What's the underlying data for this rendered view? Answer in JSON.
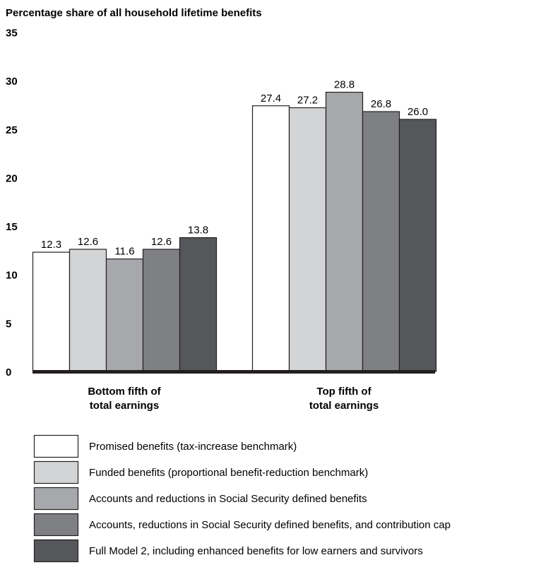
{
  "chart_data": {
    "type": "bar",
    "title": "Percentage share of all household lifetime benefits",
    "xlabel": "",
    "ylabel": "",
    "ylim": [
      0,
      35
    ],
    "yticks": [
      0,
      5,
      10,
      15,
      20,
      25,
      30,
      35
    ],
    "categories": [
      [
        "Bottom fifth of",
        "total earnings"
      ],
      [
        "Top fifth of",
        "total earnings"
      ]
    ],
    "series": [
      {
        "name": "Promised benefits (tax-increase benchmark)",
        "color": "#ffffff",
        "values": [
          12.3,
          27.4
        ],
        "labels": [
          "12.3",
          "27.4"
        ]
      },
      {
        "name": "Funded benefits (proportional benefit-reduction benchmark)",
        "color": "#d3d4d6",
        "values": [
          12.6,
          27.2
        ],
        "labels": [
          "12.6",
          "27.2"
        ]
      },
      {
        "name": "Accounts and reductions in Social Security defined benefits",
        "color": "#a7a8ab",
        "values": [
          11.6,
          28.8
        ],
        "labels": [
          "11.6",
          "28.8"
        ]
      },
      {
        "name": "Accounts, reductions in Social Security defined benefits, and contribution cap",
        "color": "#7f8084",
        "values": [
          12.6,
          26.8
        ],
        "labels": [
          "12.6",
          "26.8"
        ]
      },
      {
        "name": "Full Model 2, including enhanced benefits for low earners and survivors",
        "color": "#56575a",
        "values": [
          13.8,
          26.0
        ],
        "labels": [
          "13.8",
          "26.0"
        ]
      }
    ],
    "grid": false,
    "legend_position": "bottom"
  }
}
